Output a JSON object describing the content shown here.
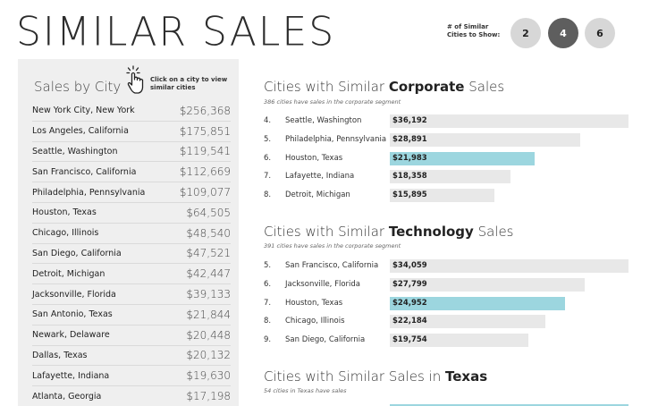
{
  "header": {
    "title": "SIMILAR SALES",
    "similar_label": "# of Similar Cities to Show:",
    "count_options": [
      "2",
      "4",
      "6"
    ],
    "selected_count": "4"
  },
  "sidebar": {
    "title": "Sales by City",
    "hint": "Click on a city to view similar cities",
    "icon": "pointer-hand-icon",
    "cities": [
      {
        "name": "New York City, New York",
        "sales": "$256,368"
      },
      {
        "name": "Los Angeles, California",
        "sales": "$175,851"
      },
      {
        "name": "Seattle, Washington",
        "sales": "$119,541"
      },
      {
        "name": "San Francisco, California",
        "sales": "$112,669"
      },
      {
        "name": "Philadelphia, Pennsylvania",
        "sales": "$109,077"
      },
      {
        "name": "Houston, Texas",
        "sales": "$64,505"
      },
      {
        "name": "Chicago, Illinois",
        "sales": "$48,540"
      },
      {
        "name": "San Diego, California",
        "sales": "$47,521"
      },
      {
        "name": "Detroit, Michigan",
        "sales": "$42,447"
      },
      {
        "name": "Jacksonville, Florida",
        "sales": "$39,133"
      },
      {
        "name": "San Antonio, Texas",
        "sales": "$21,844"
      },
      {
        "name": "Newark, Delaware",
        "sales": "$20,448"
      },
      {
        "name": "Dallas, Texas",
        "sales": "$20,132"
      },
      {
        "name": "Lafayette, Indiana",
        "sales": "$19,630"
      },
      {
        "name": "Atlanta, Georgia",
        "sales": "$17,198"
      }
    ]
  },
  "corporate": {
    "title_pre": "Cities with Similar ",
    "title_bold": "Corporate",
    "title_post": " Sales",
    "subtitle": "386 cities have sales in the corporate segment",
    "rows": [
      {
        "rank": "4.",
        "city": "Seattle, Washington",
        "label": "$36,192",
        "value": 36192,
        "highlight": false
      },
      {
        "rank": "5.",
        "city": "Philadelphia, Pennsylvania",
        "label": "$28,891",
        "value": 28891,
        "highlight": false
      },
      {
        "rank": "6.",
        "city": "Houston, Texas",
        "label": "$21,983",
        "value": 21983,
        "highlight": true
      },
      {
        "rank": "7.",
        "city": "Lafayette, Indiana",
        "label": "$18,358",
        "value": 18358,
        "highlight": false
      },
      {
        "rank": "8.",
        "city": "Detroit, Michigan",
        "label": "$15,895",
        "value": 15895,
        "highlight": false
      }
    ]
  },
  "technology": {
    "title_pre": "Cities with Similar ",
    "title_bold": "Technology",
    "title_post": " Sales",
    "subtitle": "391 cities have sales in the corporate segment",
    "rows": [
      {
        "rank": "5.",
        "city": "San Francisco, California",
        "label": "$34,059",
        "value": 34059,
        "highlight": false
      },
      {
        "rank": "6.",
        "city": "Jacksonville, Florida",
        "label": "$27,799",
        "value": 27799,
        "highlight": false
      },
      {
        "rank": "7.",
        "city": "Houston, Texas",
        "label": "$24,952",
        "value": 24952,
        "highlight": true
      },
      {
        "rank": "8.",
        "city": "Chicago, Illinois",
        "label": "$22,184",
        "value": 22184,
        "highlight": false
      },
      {
        "rank": "9.",
        "city": "San Diego, California",
        "label": "$19,754",
        "value": 19754,
        "highlight": false
      }
    ]
  },
  "texas": {
    "title_pre": "Cities with Similar Sales in ",
    "title_bold": "Texas",
    "subtitle": "54 cities in Texas have sales"
  },
  "colors": {
    "highlight": "#9cd6df",
    "bar": "#e8e8e8",
    "selected_button": "#5e5e5e",
    "button": "#d7d7d7",
    "sidebar_bg": "#efefef"
  }
}
